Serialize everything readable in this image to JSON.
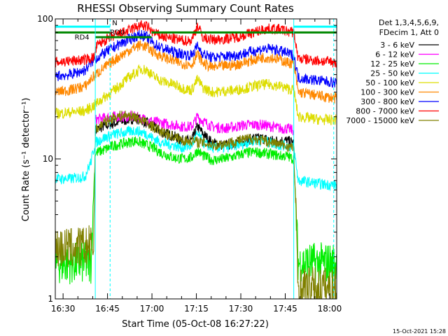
{
  "chart_data": {
    "type": "line",
    "title": "RHESSI Observing Summary Count Rates",
    "xlabel": "Start Time (05-Oct-08 16:27:22)",
    "ylabel": "Count Rate (s⁻¹ detector⁻¹)",
    "x_unit": "minutes after 16:27:22",
    "xlim": [
      0,
      95
    ],
    "ylim": [
      1,
      100
    ],
    "yscale": "log",
    "x_tick_labels": [
      "16:30",
      "16:45",
      "17:00",
      "17:15",
      "17:30",
      "17:45",
      "18:00"
    ],
    "x_tick_values": [
      2.63,
      17.63,
      32.63,
      47.63,
      62.63,
      77.63,
      92.63
    ],
    "y_tick_labels": [
      "1",
      "10",
      "100"
    ],
    "legend_header": [
      "Det 1,3,4,5,6,9,",
      "FDecim 1, Att 0"
    ],
    "legend_position": "right",
    "timestamp": "15-Oct-2021 15:28",
    "annotations": {
      "N": "N",
      "RD0": "RD0",
      "RD4": "RD4"
    },
    "vlines": {
      "solid": [
        13.5,
        80.5
      ],
      "dashed": [
        18.5,
        94.0
      ]
    },
    "series": [
      {
        "name": "3 - 6 keV",
        "color": "#000000",
        "x": [
          13.5,
          16,
          20,
          24,
          27,
          29,
          31,
          33,
          36,
          40,
          43,
          46,
          48,
          50,
          53,
          57,
          61,
          64,
          67,
          70,
          73,
          76,
          78,
          80.5
        ],
        "y": [
          16,
          17,
          18,
          19,
          19.5,
          19,
          18,
          17,
          15.5,
          14.5,
          13.5,
          13.5,
          17,
          15,
          13,
          12.5,
          13,
          13.5,
          14,
          14,
          13.5,
          13.5,
          13.5,
          13
        ]
      },
      {
        "name": "6 - 12 keV",
        "color": "#ff00ff",
        "x": [
          13.5,
          16,
          20,
          24,
          27,
          29,
          31,
          33,
          36,
          40,
          43,
          46,
          48,
          50,
          53,
          57,
          61,
          64,
          67,
          70,
          73,
          76,
          78,
          80.5
        ],
        "y": [
          19,
          19.5,
          20,
          20,
          20,
          19.5,
          19,
          18.5,
          18,
          17.5,
          17,
          17,
          20,
          18.5,
          17,
          16.5,
          17,
          17.5,
          17.5,
          17.5,
          17,
          16.5,
          16.5,
          16
        ]
      },
      {
        "name": "12 - 25 keV",
        "color": "#00ee00",
        "x": [
          0,
          8,
          12,
          13.5,
          16,
          20,
          24,
          27,
          29,
          31,
          33,
          36,
          40,
          43,
          46,
          48,
          50,
          53,
          57,
          61,
          64,
          67,
          70,
          73,
          76,
          78,
          80.5,
          82,
          88,
          95
        ],
        "y": [
          1.8,
          1.8,
          1.8,
          11,
          11.5,
          12.5,
          13,
          13.5,
          13,
          12.5,
          12,
          11,
          10.2,
          10,
          10.2,
          11.5,
          10.5,
          9.8,
          10,
          10.5,
          11,
          11.2,
          11,
          10.8,
          10.5,
          10.5,
          10,
          1.8,
          1.8,
          1.8
        ]
      },
      {
        "name": "25 - 50 keV",
        "color": "#00ffff",
        "x": [
          0,
          5,
          10,
          12,
          13.5,
          16,
          20,
          24,
          27,
          29,
          31,
          33,
          36,
          40,
          43,
          46,
          48,
          50,
          53,
          57,
          61,
          64,
          67,
          70,
          73,
          76,
          78,
          80.5,
          82,
          86,
          90,
          95
        ],
        "y": [
          7.2,
          7.2,
          7.5,
          9.5,
          13,
          14,
          15,
          15.5,
          16,
          15.5,
          15,
          14,
          13,
          12.5,
          12,
          12.5,
          15,
          13,
          12,
          12,
          12.5,
          13,
          13.5,
          13.5,
          13,
          12.5,
          12.5,
          12,
          7,
          6.8,
          6.6,
          6.5
        ]
      },
      {
        "name": "50 - 100 keV",
        "color": "#dddd00",
        "x": [
          0,
          5,
          10,
          13,
          16,
          20,
          24,
          27,
          29,
          31,
          33,
          36,
          40,
          43,
          46,
          48,
          50,
          53,
          57,
          61,
          64,
          67,
          70,
          73,
          76,
          78,
          80.5,
          82,
          86,
          90,
          95
        ],
        "y": [
          21,
          21.5,
          22,
          24,
          27,
          31,
          37,
          41,
          44,
          43,
          39,
          36,
          34,
          32,
          31,
          37,
          32,
          30,
          30.5,
          31,
          32,
          33,
          34,
          34,
          33,
          32,
          31,
          20,
          19.5,
          19,
          19
        ]
      },
      {
        "name": "100 - 300 keV",
        "color": "#ff8800",
        "x": [
          0,
          5,
          10,
          13,
          16,
          20,
          24,
          27,
          29,
          31,
          33,
          36,
          40,
          43,
          46,
          48,
          50,
          53,
          57,
          61,
          64,
          67,
          70,
          73,
          76,
          78,
          80.5,
          82,
          86,
          90,
          95
        ],
        "y": [
          30,
          31,
          33,
          39,
          44,
          51,
          58,
          63,
          65,
          63,
          58,
          54,
          50,
          48,
          47,
          56,
          48,
          45,
          46,
          47,
          49,
          51,
          53,
          53,
          51,
          49,
          48,
          30,
          29,
          28,
          27
        ]
      },
      {
        "name": "300 - 800 keV",
        "color": "#0000ff",
        "x": [
          0,
          5,
          10,
          13,
          16,
          20,
          24,
          27,
          29,
          31,
          33,
          36,
          40,
          43,
          46,
          48,
          50,
          53,
          57,
          61,
          64,
          67,
          70,
          73,
          76,
          78,
          80.5,
          82,
          86,
          90,
          95
        ],
        "y": [
          39,
          40,
          43,
          51,
          56,
          63,
          70,
          75,
          77,
          74,
          67,
          62,
          58,
          56,
          55,
          64,
          56,
          53,
          54,
          55,
          57,
          59,
          61,
          61,
          59,
          57,
          55,
          38,
          37,
          36,
          35
        ]
      },
      {
        "name": "800 - 7000 keV",
        "color": "#ff0000",
        "x": [
          0,
          5,
          10,
          13,
          14,
          16,
          20,
          24,
          27,
          29,
          31,
          33,
          36,
          40,
          43,
          46,
          48,
          50,
          53,
          57,
          61,
          64,
          67,
          70,
          73,
          76,
          78,
          80.5,
          82,
          86,
          90,
          95
        ],
        "y": [
          49,
          50,
          51,
          53,
          64,
          69,
          76,
          81,
          87,
          90,
          88,
          80,
          75,
          72,
          70,
          70,
          90,
          73,
          71,
          72,
          74,
          77,
          80,
          84,
          85,
          84,
          82,
          80,
          52,
          51,
          50,
          49
        ]
      },
      {
        "name": "7000 - 15000 keV",
        "color": "#808000",
        "x": [
          0,
          6,
          13,
          13.5,
          16,
          20,
          24,
          27,
          29,
          31,
          33,
          36,
          40,
          43,
          46,
          50,
          54,
          58,
          62,
          66,
          70,
          74,
          77,
          80.5,
          82,
          95
        ],
        "y": [
          2.3,
          2.3,
          2.4,
          16,
          18,
          20,
          20.5,
          20,
          19,
          18,
          17,
          15.5,
          14.5,
          13.5,
          13.5,
          13,
          12.5,
          13,
          13.5,
          14,
          13.5,
          13,
          12.5,
          12,
          1.2,
          1.2
        ]
      }
    ],
    "flags": [
      {
        "label": "N",
        "color": "#00ffff",
        "y": 88,
        "x_ranges": [
          [
            0,
            18.5
          ],
          [
            80.5,
            95
          ]
        ]
      },
      {
        "label": "RD0",
        "color": "#008800",
        "y": 80,
        "x_ranges": [
          [
            0,
            18.5
          ],
          [
            32.5,
            95
          ]
        ]
      },
      {
        "label": "RD4",
        "color": "#008800",
        "y": 74,
        "x_ranges": [
          [
            13.5,
            32.5
          ]
        ]
      }
    ]
  }
}
